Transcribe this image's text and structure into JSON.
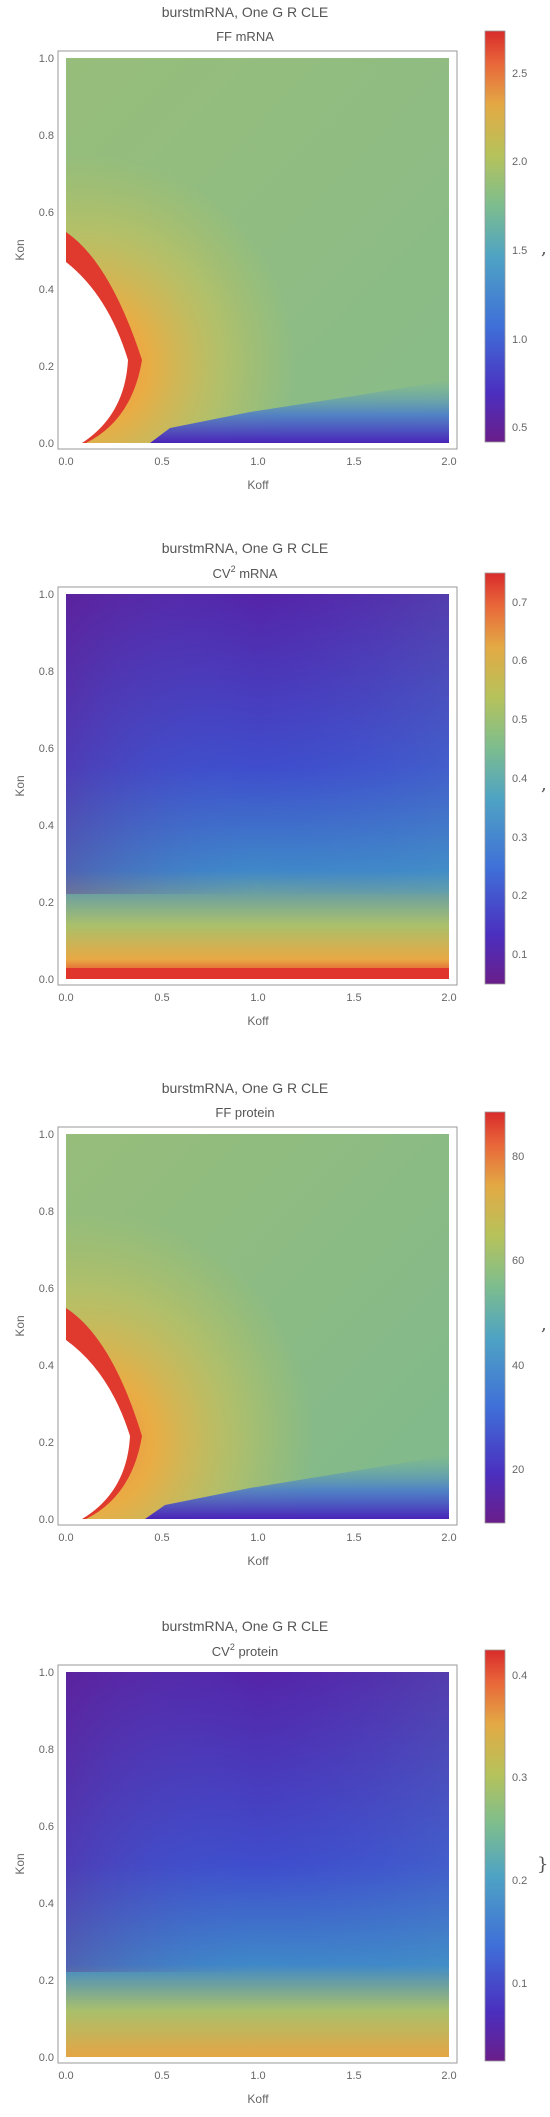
{
  "chart_data": [
    {
      "type": "heatmap",
      "title": "burstmRNA, One G R CLE",
      "subtitle": "FF mRNA",
      "subtitle_sup": "",
      "subtitle_rest": "",
      "xlabel": "Koff",
      "ylabel": "Kon",
      "xlim": [
        0,
        2
      ],
      "ylim": [
        0,
        1
      ],
      "xticks": [
        "0.0",
        "0.5",
        "1.0",
        "1.5",
        "2.0"
      ],
      "yticks": [
        "0.0",
        "0.2",
        "0.4",
        "0.6",
        "0.8",
        "1.0"
      ],
      "colorbar": {
        "min": 0.4,
        "max": 2.7,
        "ticks": [
          "0.5",
          "1.0",
          "1.5",
          "2.0",
          "2.5"
        ]
      },
      "separator": ",",
      "undefined_region": true
    },
    {
      "type": "heatmap",
      "title": "burstmRNA, One G R CLE",
      "subtitle": "CV",
      "subtitle_sup": "2",
      "subtitle_rest": " mRNA",
      "xlabel": "Koff",
      "ylabel": "Kon",
      "xlim": [
        0,
        2
      ],
      "ylim": [
        0,
        1
      ],
      "xticks": [
        "0.0",
        "0.5",
        "1.0",
        "1.5",
        "2.0"
      ],
      "yticks": [
        "0.0",
        "0.2",
        "0.4",
        "0.6",
        "0.8",
        "1.0"
      ],
      "colorbar": {
        "min": 0.05,
        "max": 0.75,
        "ticks": [
          "0.1",
          "0.2",
          "0.3",
          "0.4",
          "0.5",
          "0.6",
          "0.7"
        ]
      },
      "separator": ",",
      "undefined_region": false
    },
    {
      "type": "heatmap",
      "title": "burstmRNA, One G R CLE",
      "subtitle": "FF protein",
      "subtitle_sup": "",
      "subtitle_rest": "",
      "xlabel": "Koff",
      "ylabel": "Kon",
      "xlim": [
        0,
        2
      ],
      "ylim": [
        0,
        1
      ],
      "xticks": [
        "0.0",
        "0.5",
        "1.0",
        "1.5",
        "2.0"
      ],
      "yticks": [
        "0.0",
        "0.2",
        "0.4",
        "0.6",
        "0.8",
        "1.0"
      ],
      "colorbar": {
        "min": 9,
        "max": 88,
        "ticks": [
          "20",
          "40",
          "60",
          "80"
        ]
      },
      "separator": ",",
      "undefined_region": true
    },
    {
      "type": "heatmap",
      "title": "burstmRNA, One G R CLE",
      "subtitle": "CV",
      "subtitle_sup": "2",
      "subtitle_rest": " protein",
      "xlabel": "Koff",
      "ylabel": "Kon",
      "xlim": [
        0,
        2
      ],
      "ylim": [
        0,
        1
      ],
      "xticks": [
        "0.0",
        "0.5",
        "1.0",
        "1.5",
        "2.0"
      ],
      "yticks": [
        "0.0",
        "0.2",
        "0.4",
        "0.6",
        "0.8",
        "1.0"
      ],
      "colorbar": {
        "min": 0.02,
        "max": 0.42,
        "ticks": [
          "0.1",
          "0.2",
          "0.3",
          "0.4"
        ]
      },
      "separator": "}",
      "undefined_region": false
    }
  ]
}
